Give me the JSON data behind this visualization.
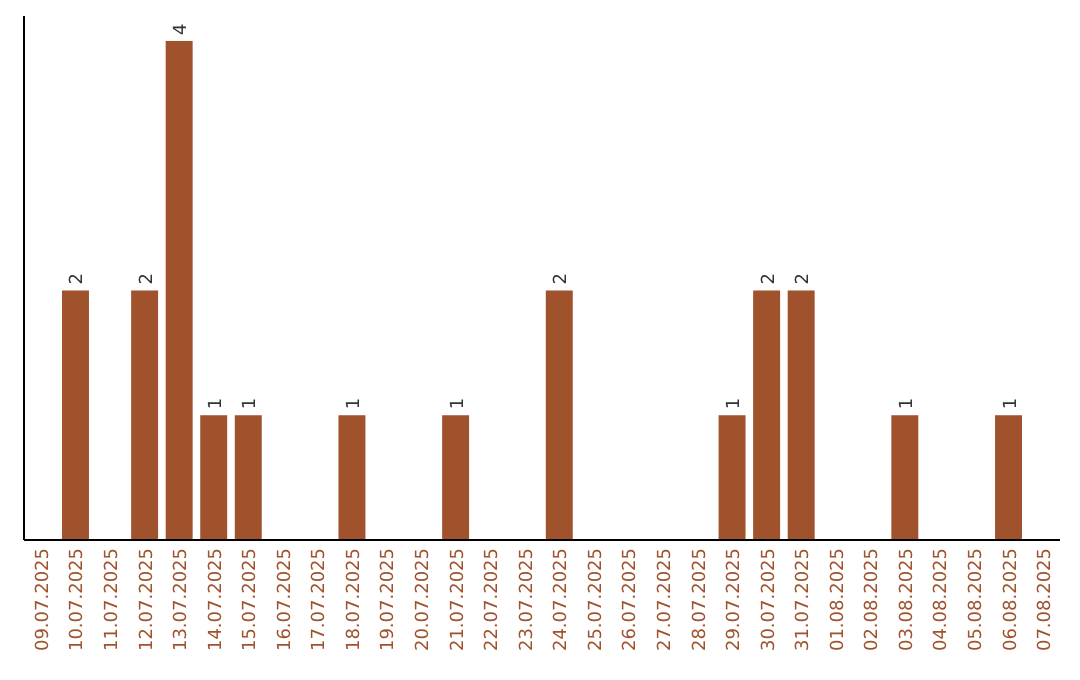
{
  "chart_data": {
    "type": "bar",
    "categories": [
      "09.07.2025",
      "10.07.2025",
      "11.07.2025",
      "12.07.2025",
      "13.07.2025",
      "14.07.2025",
      "15.07.2025",
      "16.07.2025",
      "17.07.2025",
      "18.07.2025",
      "19.07.2025",
      "20.07.2025",
      "21.07.2025",
      "22.07.2025",
      "23.07.2025",
      "24.07.2025",
      "25.07.2025",
      "26.07.2025",
      "27.07.2025",
      "28.07.2025",
      "29.07.2025",
      "30.07.2025",
      "31.07.2025",
      "01.08.2025",
      "02.08.2025",
      "03.08.2025",
      "04.08.2025",
      "05.08.2025",
      "06.08.2025",
      "07.08.2025"
    ],
    "values": [
      0,
      2,
      0,
      2,
      4,
      1,
      1,
      0,
      0,
      1,
      0,
      0,
      1,
      0,
      0,
      2,
      0,
      0,
      0,
      0,
      1,
      2,
      2,
      0,
      0,
      1,
      0,
      0,
      1,
      0
    ],
    "value_labels": [
      null,
      "2",
      null,
      "2",
      "4",
      "1",
      "1",
      null,
      null,
      "1",
      null,
      null,
      "1",
      null,
      null,
      "2",
      null,
      null,
      null,
      null,
      "1",
      "2",
      "2",
      null,
      null,
      "1",
      null,
      null,
      "1",
      null
    ],
    "color": "#a0522d",
    "ylim": [
      0,
      4.2
    ],
    "tick_labels": "x",
    "grid": false
  }
}
